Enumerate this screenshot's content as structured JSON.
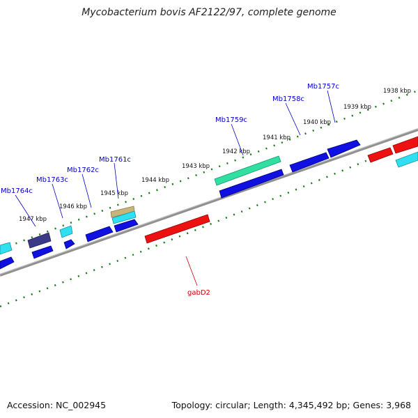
{
  "title": "Mycobacterium bovis AF2122/97, complete genome",
  "footer": {
    "accession": "Accession: NC_002945",
    "topology": "Topology: circular; Length: 4,345,492 bp; Genes: 3,968"
  },
  "colors": {
    "backbone": "#888888",
    "ticks": "#1a7a1a",
    "gene_blue": "#1010e0",
    "gene_cyan": "#30e0f0",
    "gene_red": "#ee1111",
    "gene_teal": "#30e0a0",
    "gene_navy": "#3a3a88",
    "gene_tan": "#c8b478",
    "label_blue": "#0000cc",
    "label_red": "#cc0000"
  },
  "kbp_labels": [
    "1938 kbp",
    "1939 kbp",
    "1940 kbp",
    "1941 kbp",
    "1942 kbp",
    "1943 kbp",
    "1944 kbp",
    "1945 kbp",
    "1946 kbp",
    "1947 kbp"
  ],
  "gene_labels": [
    {
      "text": "Mb1757c",
      "strand": "upper"
    },
    {
      "text": "Mb1758c",
      "strand": "upper"
    },
    {
      "text": "Mb1759c",
      "strand": "upper"
    },
    {
      "text": "Mb1761c",
      "strand": "upper"
    },
    {
      "text": "Mb1762c",
      "strand": "upper"
    },
    {
      "text": "Mb1763c",
      "strand": "upper"
    },
    {
      "text": "Mb1764c",
      "strand": "upper"
    },
    {
      "text": "gabD2",
      "strand": "lower"
    }
  ]
}
